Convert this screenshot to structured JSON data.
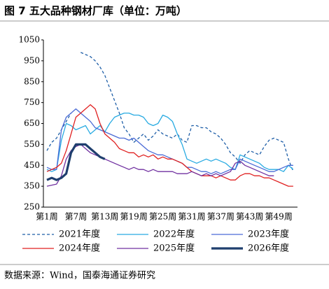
{
  "title": "图 7 五大品种钢材厂库（单位：万吨）",
  "source": "数据来源：Wind，国泰海通证券研究",
  "chart_data": {
    "type": "line",
    "categories": [
      "第1周",
      null,
      null,
      null,
      null,
      null,
      "第7周",
      null,
      null,
      null,
      null,
      null,
      "第13周",
      null,
      null,
      null,
      null,
      null,
      "第19周",
      null,
      null,
      null,
      null,
      null,
      "第25周",
      null,
      null,
      null,
      null,
      null,
      "第31周",
      null,
      null,
      null,
      null,
      null,
      "第37周",
      null,
      null,
      null,
      null,
      null,
      "第43周",
      null,
      null,
      null,
      null,
      null,
      "第49周",
      null,
      null,
      null
    ],
    "ylim": [
      250,
      1050
    ],
    "yticks": [
      250,
      350,
      450,
      550,
      650,
      750,
      850,
      950,
      1050
    ],
    "grid": false,
    "legend": "bottom",
    "series": [
      {
        "name": "2021年度",
        "color": "#1f5fa8",
        "style": "dashed",
        "width": 1.3,
        "values": [
          520,
          560,
          580,
          620,
          660,
          700,
          null,
          990,
          980,
          970,
          950,
          920,
          880,
          820,
          760,
          700,
          630,
          600,
          560,
          580,
          600,
          570,
          590,
          620,
          600,
          590,
          580,
          600,
          570,
          560,
          640,
          640,
          630,
          630,
          610,
          600,
          580,
          550,
          510,
          490,
          460,
          500,
          520,
          510,
          500,
          540,
          570,
          580,
          570,
          560,
          480,
          420
        ]
      },
      {
        "name": "2022年度",
        "color": "#29abe2",
        "style": "solid",
        "width": 1.3,
        "values": [
          430,
          420,
          430,
          570,
          650,
          640,
          620,
          630,
          640,
          600,
          620,
          640,
          610,
          650,
          680,
          690,
          700,
          700,
          690,
          690,
          680,
          650,
          640,
          650,
          690,
          680,
          660,
          600,
          550,
          480,
          470,
          460,
          470,
          480,
          470,
          480,
          470,
          460,
          440,
          430,
          500,
          490,
          480,
          470,
          460,
          440,
          430,
          430,
          430,
          420,
          450,
          430
        ]
      },
      {
        "name": "2023年度",
        "color": "#4a6bd6",
        "style": "solid",
        "width": 1.3,
        "values": [
          440,
          430,
          430,
          620,
          680,
          700,
          720,
          700,
          680,
          660,
          630,
          620,
          610,
          600,
          590,
          580,
          580,
          570,
          580,
          560,
          540,
          520,
          510,
          500,
          500,
          490,
          480,
          470,
          460,
          440,
          440,
          430,
          420,
          420,
          410,
          420,
          410,
          420,
          430,
          430,
          480,
          470,
          460,
          450,
          440,
          430,
          420,
          420,
          430,
          440,
          450,
          450
        ]
      },
      {
        "name": "2024年度",
        "color": "#e02020",
        "style": "solid",
        "width": 1.3,
        "values": [
          420,
          430,
          440,
          460,
          520,
          600,
          680,
          700,
          720,
          740,
          720,
          650,
          600,
          580,
          560,
          530,
          520,
          510,
          510,
          490,
          500,
          490,
          500,
          480,
          490,
          480,
          480,
          470,
          460,
          440,
          420,
          410,
          400,
          400,
          400,
          390,
          400,
          390,
          380,
          380,
          400,
          410,
          410,
          400,
          400,
          390,
          390,
          380,
          370,
          360,
          350,
          350
        ]
      },
      {
        "name": "2025年度",
        "color": "#7030a0",
        "style": "solid",
        "width": 1.3,
        "values": [
          350,
          355,
          360,
          400,
          480,
          520,
          540,
          550,
          530,
          510,
          500,
          490,
          480,
          470,
          460,
          450,
          440,
          430,
          440,
          430,
          430,
          420,
          430,
          420,
          420,
          420,
          420,
          410,
          410,
          410,
          420,
          410,
          400,
          410,
          400,
          410,
          400,
          410,
          420,
          460,
          470,
          450,
          440,
          430,
          420,
          410,
          400,
          400,
          null,
          null,
          null,
          null
        ]
      },
      {
        "name": "2026年度",
        "color": "#1f3f6e",
        "style": "solid",
        "width": 3.2,
        "values": [
          380,
          390,
          380,
          390,
          410,
          510,
          550,
          550,
          550,
          530,
          510,
          490,
          480,
          null,
          null,
          null,
          null,
          null,
          null,
          null,
          null,
          null,
          null,
          null,
          null,
          null,
          null,
          null,
          null,
          null,
          null,
          null,
          null,
          null,
          null,
          null,
          null,
          null,
          null,
          null,
          null,
          null,
          null,
          null,
          null,
          null,
          null,
          null,
          null,
          null,
          null,
          null
        ]
      }
    ]
  }
}
